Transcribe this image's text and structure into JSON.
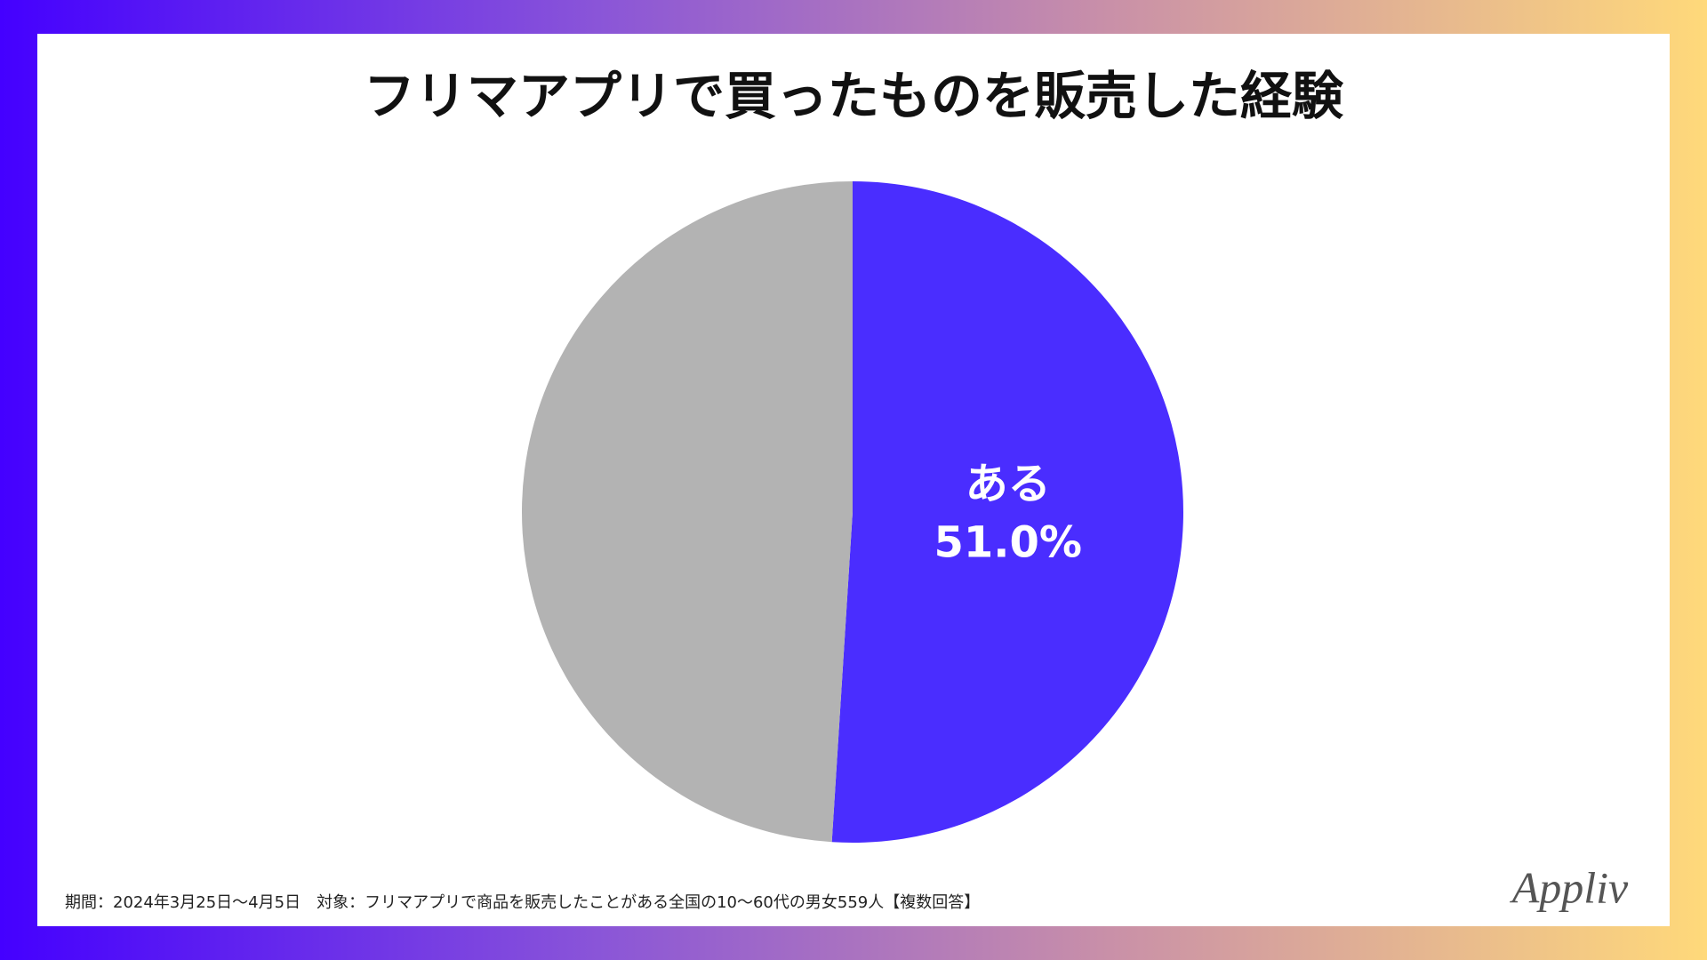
{
  "chart_data": {
    "type": "pie",
    "title": "フリマアプリで買ったものを販売した経験",
    "categories": [
      "ある",
      null
    ],
    "values": [
      51.0,
      49.0
    ],
    "value_labels": [
      "51.0%",
      null
    ],
    "colors": [
      "#4a2dff",
      "#b3b3b3"
    ],
    "footnote": "期間：2024年3月25日〜4月5日　対象：フリマアプリで商品を販売したことがある全国の10〜60代の男女559人【複数回答】",
    "logo": "Appliv"
  }
}
